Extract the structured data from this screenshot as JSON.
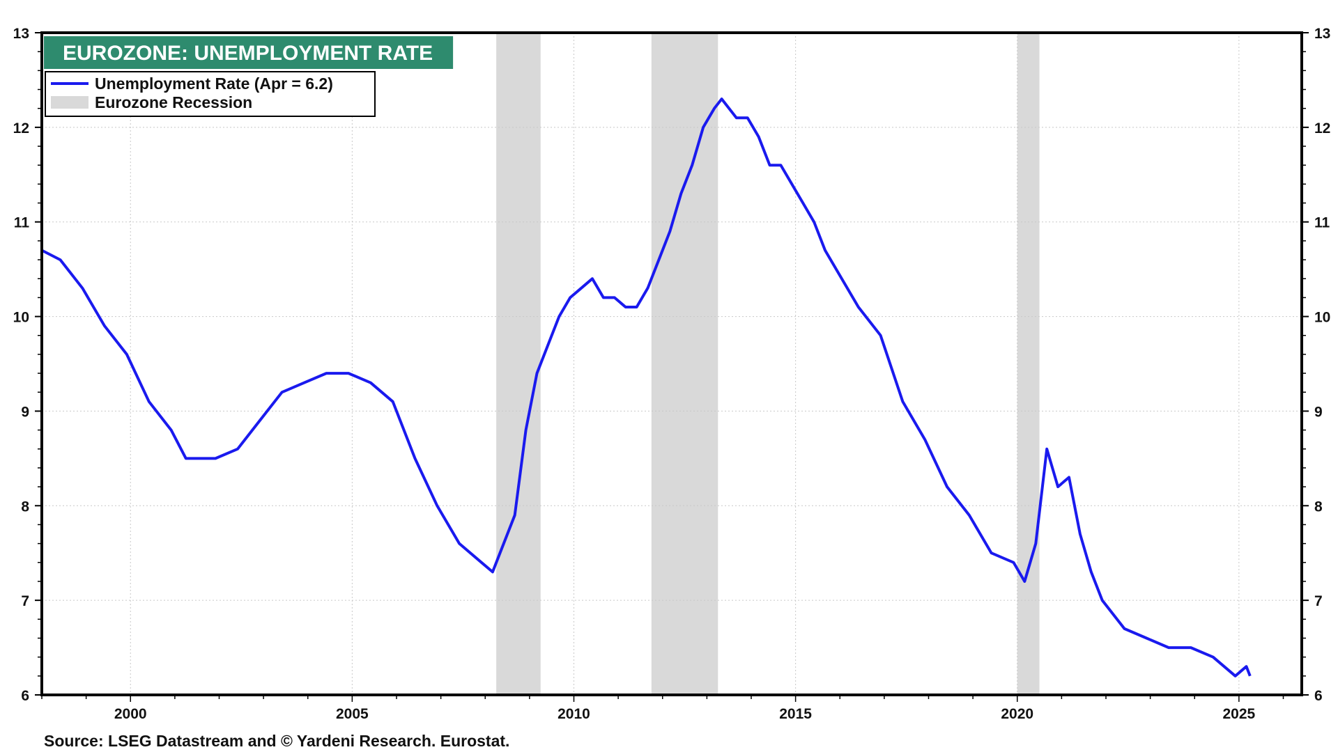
{
  "chart_data": {
    "type": "line",
    "title": "EUROZONE: UNEMPLOYMENT RATE",
    "source": "Source: LSEG Datastream and © Yardeni Research. Eurostat.",
    "x_range": [
      "1998-01",
      "2026-06"
    ],
    "ylim": [
      6,
      13
    ],
    "y_ticks": [
      6,
      7,
      8,
      9,
      10,
      11,
      12,
      13
    ],
    "y_tick_labels": [
      "6",
      "7",
      "8",
      "9",
      "10",
      "11",
      "12",
      "13"
    ],
    "x_ticks": [
      2000,
      2005,
      2010,
      2015,
      2020,
      2025
    ],
    "x_tick_labels": [
      "2000",
      "2005",
      "2010",
      "2015",
      "2020",
      "2025"
    ],
    "grid": true,
    "y_axis_both_sides": true,
    "legend_position": "top-left",
    "legend": [
      {
        "label": "Unemployment Rate (Apr = 6.2)",
        "kind": "line",
        "color": "#1a1aee"
      },
      {
        "label": "Eurozone Recession",
        "kind": "band",
        "color": "#d9d9d9"
      }
    ],
    "colors": {
      "title_bg": "#2e8b6e",
      "line": "#1a1aee",
      "recession": "#d9d9d9",
      "grid": "#c8c8c8"
    },
    "recessions": [
      {
        "start": "2008-04",
        "end": "2009-04"
      },
      {
        "start": "2011-10",
        "end": "2013-04"
      },
      {
        "start": "2020-01",
        "end": "2020-07"
      }
    ],
    "series": [
      {
        "name": "Unemployment Rate (Apr = 6.2)",
        "points": [
          [
            "1998-01",
            10.7
          ],
          [
            "1998-06",
            10.6
          ],
          [
            "1998-12",
            10.3
          ],
          [
            "1999-06",
            9.9
          ],
          [
            "1999-12",
            9.6
          ],
          [
            "2000-06",
            9.1
          ],
          [
            "2000-12",
            8.8
          ],
          [
            "2001-04",
            8.5
          ],
          [
            "2001-12",
            8.5
          ],
          [
            "2002-06",
            8.6
          ],
          [
            "2002-12",
            8.9
          ],
          [
            "2003-06",
            9.2
          ],
          [
            "2003-12",
            9.3
          ],
          [
            "2004-06",
            9.4
          ],
          [
            "2004-12",
            9.4
          ],
          [
            "2005-06",
            9.3
          ],
          [
            "2005-12",
            9.1
          ],
          [
            "2006-06",
            8.5
          ],
          [
            "2006-12",
            8.0
          ],
          [
            "2007-06",
            7.6
          ],
          [
            "2007-12",
            7.4
          ],
          [
            "2008-03",
            7.3
          ],
          [
            "2008-06",
            7.6
          ],
          [
            "2008-09",
            7.9
          ],
          [
            "2008-12",
            8.8
          ],
          [
            "2009-03",
            9.4
          ],
          [
            "2009-06",
            9.7
          ],
          [
            "2009-09",
            10.0
          ],
          [
            "2009-12",
            10.2
          ],
          [
            "2010-03",
            10.3
          ],
          [
            "2010-06",
            10.4
          ],
          [
            "2010-09",
            10.2
          ],
          [
            "2010-12",
            10.2
          ],
          [
            "2011-03",
            10.1
          ],
          [
            "2011-06",
            10.1
          ],
          [
            "2011-09",
            10.3
          ],
          [
            "2011-12",
            10.6
          ],
          [
            "2012-03",
            10.9
          ],
          [
            "2012-06",
            11.3
          ],
          [
            "2012-09",
            11.6
          ],
          [
            "2012-12",
            12.0
          ],
          [
            "2013-03",
            12.2
          ],
          [
            "2013-05",
            12.3
          ],
          [
            "2013-09",
            12.1
          ],
          [
            "2013-12",
            12.1
          ],
          [
            "2014-03",
            11.9
          ],
          [
            "2014-06",
            11.6
          ],
          [
            "2014-09",
            11.6
          ],
          [
            "2014-12",
            11.4
          ],
          [
            "2015-03",
            11.2
          ],
          [
            "2015-06",
            11.0
          ],
          [
            "2015-09",
            10.7
          ],
          [
            "2015-12",
            10.5
          ],
          [
            "2016-06",
            10.1
          ],
          [
            "2016-12",
            9.8
          ],
          [
            "2017-06",
            9.1
          ],
          [
            "2017-12",
            8.7
          ],
          [
            "2018-06",
            8.2
          ],
          [
            "2018-12",
            7.9
          ],
          [
            "2019-06",
            7.5
          ],
          [
            "2019-12",
            7.4
          ],
          [
            "2020-03",
            7.2
          ],
          [
            "2020-06",
            7.6
          ],
          [
            "2020-09",
            8.6
          ],
          [
            "2020-12",
            8.2
          ],
          [
            "2021-03",
            8.3
          ],
          [
            "2021-06",
            7.7
          ],
          [
            "2021-09",
            7.3
          ],
          [
            "2021-12",
            7.0
          ],
          [
            "2022-06",
            6.7
          ],
          [
            "2022-12",
            6.6
          ],
          [
            "2023-06",
            6.5
          ],
          [
            "2023-12",
            6.5
          ],
          [
            "2024-06",
            6.4
          ],
          [
            "2024-12",
            6.2
          ],
          [
            "2025-03",
            6.3
          ],
          [
            "2025-04",
            6.2
          ]
        ]
      }
    ]
  }
}
